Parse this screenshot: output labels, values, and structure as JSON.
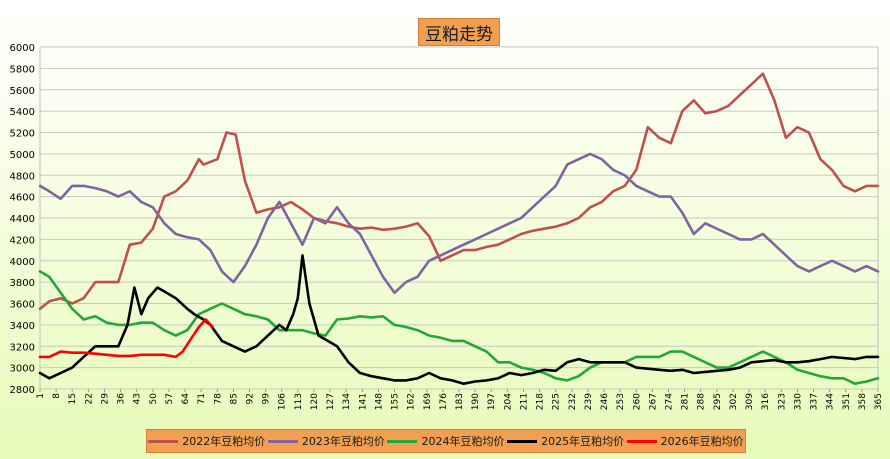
{
  "chart_data": {
    "type": "line",
    "title": "豆粕走势",
    "ylim": [
      2800,
      6000
    ],
    "yticks": [
      2800,
      3000,
      3200,
      3400,
      3600,
      3800,
      4000,
      4200,
      4400,
      4600,
      4800,
      5000,
      5200,
      5400,
      5600,
      5800,
      6000
    ],
    "xlim": [
      1,
      365
    ],
    "xticks": [
      1,
      8,
      15,
      22,
      29,
      36,
      43,
      50,
      57,
      64,
      71,
      78,
      85,
      92,
      99,
      106,
      113,
      120,
      127,
      134,
      141,
      148,
      155,
      162,
      169,
      176,
      183,
      190,
      197,
      204,
      211,
      218,
      225,
      232,
      239,
      246,
      253,
      260,
      267,
      274,
      281,
      288,
      295,
      302,
      309,
      316,
      323,
      330,
      337,
      344,
      351,
      358,
      365
    ],
    "grid": true,
    "legend_position": "bottom",
    "series": [
      {
        "name": "2022年豆粕均价",
        "color": "#c0504d",
        "x": [
          1,
          5,
          10,
          15,
          20,
          25,
          30,
          35,
          40,
          45,
          50,
          55,
          60,
          65,
          70,
          72,
          78,
          82,
          86,
          90,
          95,
          100,
          105,
          110,
          115,
          120,
          125,
          130,
          135,
          140,
          145,
          150,
          155,
          160,
          165,
          170,
          175,
          180,
          185,
          190,
          195,
          200,
          205,
          210,
          215,
          220,
          225,
          230,
          235,
          240,
          245,
          250,
          255,
          260,
          265,
          270,
          275,
          280,
          285,
          290,
          295,
          300,
          305,
          310,
          315,
          320,
          325,
          330,
          335,
          340,
          345,
          350,
          355,
          360,
          365
        ],
        "values": [
          3550,
          3620,
          3650,
          3600,
          3650,
          3800,
          3800,
          3800,
          4150,
          4170,
          4300,
          4600,
          4650,
          4750,
          4950,
          4900,
          4950,
          5200,
          5180,
          4750,
          4450,
          4480,
          4500,
          4550,
          4480,
          4400,
          4370,
          4350,
          4320,
          4300,
          4310,
          4290,
          4300,
          4320,
          4350,
          4230,
          4000,
          4050,
          4100,
          4100,
          4130,
          4150,
          4200,
          4250,
          4280,
          4300,
          4320,
          4350,
          4400,
          4500,
          4550,
          4650,
          4700,
          4850,
          5250,
          5150,
          5100,
          5400,
          5500,
          5380,
          5400,
          5450,
          5550,
          5650,
          5750,
          5500,
          5150,
          5250,
          5200,
          4950,
          4850,
          4700,
          4650,
          4700,
          4700
        ]
      },
      {
        "name": "2023年豆粕均价",
        "color": "#8064a2",
        "x": [
          1,
          5,
          10,
          15,
          20,
          25,
          30,
          35,
          40,
          45,
          50,
          55,
          60,
          65,
          70,
          75,
          80,
          85,
          90,
          95,
          100,
          105,
          110,
          115,
          120,
          125,
          130,
          135,
          140,
          145,
          150,
          155,
          160,
          165,
          170,
          175,
          180,
          185,
          190,
          195,
          200,
          205,
          210,
          215,
          220,
          225,
          230,
          235,
          240,
          245,
          250,
          255,
          260,
          265,
          270,
          275,
          280,
          285,
          290,
          295,
          300,
          305,
          310,
          315,
          320,
          325,
          330,
          335,
          340,
          345,
          350,
          355,
          360,
          365
        ],
        "values": [
          4700,
          4650,
          4580,
          4700,
          4700,
          4680,
          4650,
          4600,
          4650,
          4550,
          4500,
          4350,
          4250,
          4220,
          4200,
          4100,
          3900,
          3800,
          3950,
          4150,
          4400,
          4550,
          4350,
          4150,
          4400,
          4350,
          4500,
          4350,
          4250,
          4050,
          3850,
          3700,
          3800,
          3850,
          4000,
          4050,
          4100,
          4150,
          4200,
          4250,
          4300,
          4350,
          4400,
          4500,
          4600,
          4700,
          4900,
          4950,
          5000,
          4950,
          4850,
          4800,
          4700,
          4650,
          4600,
          4600,
          4450,
          4250,
          4350,
          4300,
          4250,
          4200,
          4200,
          4250,
          4150,
          4050,
          3950,
          3900,
          3950,
          4000,
          3950,
          3900,
          3950,
          3900
        ]
      },
      {
        "name": "2024年豆粕均价",
        "color": "#22a838",
        "x": [
          1,
          5,
          10,
          15,
          20,
          25,
          30,
          35,
          40,
          45,
          50,
          55,
          60,
          65,
          70,
          75,
          80,
          85,
          90,
          95,
          100,
          105,
          110,
          115,
          120,
          125,
          130,
          135,
          140,
          145,
          150,
          155,
          160,
          165,
          170,
          175,
          180,
          185,
          190,
          195,
          200,
          205,
          210,
          215,
          220,
          225,
          230,
          235,
          240,
          245,
          250,
          255,
          260,
          265,
          270,
          275,
          280,
          285,
          290,
          295,
          300,
          305,
          310,
          315,
          320,
          325,
          330,
          335,
          340,
          345,
          350,
          355,
          360,
          365
        ],
        "values": [
          3900,
          3850,
          3700,
          3550,
          3450,
          3480,
          3420,
          3400,
          3400,
          3420,
          3420,
          3350,
          3300,
          3350,
          3500,
          3550,
          3600,
          3550,
          3500,
          3480,
          3450,
          3350,
          3350,
          3350,
          3320,
          3300,
          3450,
          3460,
          3480,
          3470,
          3480,
          3400,
          3380,
          3350,
          3300,
          3280,
          3250,
          3250,
          3200,
          3150,
          3050,
          3050,
          3000,
          2980,
          2950,
          2900,
          2880,
          2920,
          3000,
          3050,
          3050,
          3050,
          3100,
          3100,
          3100,
          3150,
          3150,
          3100,
          3050,
          3000,
          3000,
          3050,
          3100,
          3150,
          3100,
          3050,
          2980,
          2950,
          2920,
          2900,
          2900,
          2850,
          2870,
          2900
        ]
      },
      {
        "name": "2025年豆粕均价",
        "color": "#000000",
        "x": [
          1,
          5,
          10,
          15,
          20,
          25,
          30,
          35,
          39,
          42,
          45,
          48,
          52,
          56,
          60,
          65,
          68,
          72,
          75,
          80,
          85,
          90,
          95,
          100,
          105,
          108,
          111,
          113,
          115,
          118,
          122,
          126,
          130,
          135,
          140,
          145,
          150,
          155,
          160,
          165,
          170,
          175,
          180,
          185,
          190,
          195,
          200,
          205,
          210,
          215,
          220,
          225,
          230,
          235,
          240,
          245,
          250,
          255,
          260,
          265,
          270,
          275,
          280,
          285,
          290,
          295,
          300,
          305,
          310,
          315,
          320,
          325,
          330,
          335,
          340,
          345,
          350,
          355,
          360,
          365
        ],
        "values": [
          2950,
          2900,
          2950,
          3000,
          3100,
          3200,
          3200,
          3200,
          3400,
          3750,
          3500,
          3650,
          3750,
          3700,
          3650,
          3550,
          3500,
          3450,
          3400,
          3250,
          3200,
          3150,
          3200,
          3300,
          3400,
          3350,
          3500,
          3650,
          4050,
          3600,
          3300,
          3250,
          3200,
          3050,
          2950,
          2920,
          2900,
          2880,
          2880,
          2900,
          2950,
          2900,
          2880,
          2850,
          2870,
          2880,
          2900,
          2950,
          2930,
          2950,
          2980,
          2970,
          3050,
          3080,
          3050,
          3050,
          3050,
          3050,
          3000,
          2990,
          2980,
          2970,
          2980,
          2950,
          2960,
          2970,
          2980,
          3000,
          3050,
          3060,
          3070,
          3050,
          3050,
          3060,
          3080,
          3100,
          3090,
          3080,
          3100,
          3100
        ]
      },
      {
        "name": "2026年豆粕均价",
        "color": "#ff0000",
        "x": [
          1,
          5,
          10,
          15,
          20,
          25,
          30,
          35,
          40,
          45,
          50,
          55,
          60,
          63,
          66,
          70,
          73,
          76
        ],
        "values": [
          3100,
          3100,
          3150,
          3140,
          3140,
          3130,
          3120,
          3110,
          3110,
          3120,
          3120,
          3120,
          3100,
          3150,
          3250,
          3380,
          3450,
          3380
        ]
      }
    ]
  }
}
